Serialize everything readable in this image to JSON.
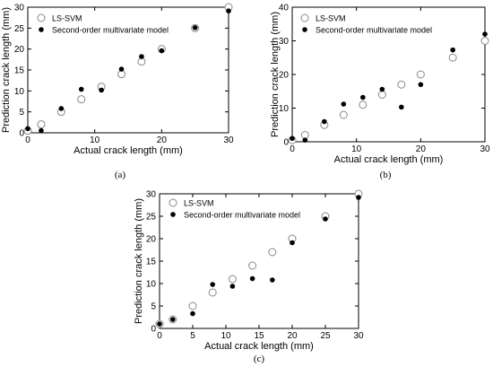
{
  "chart_data": [
    {
      "type": "scatter",
      "caption": "(a)",
      "xlabel": "Actual crack length (mm)",
      "ylabel": "Prediction crack length (mm)",
      "xlim": [
        0,
        30
      ],
      "ylim": [
        0,
        30
      ],
      "xticks": [
        0,
        10,
        20,
        30
      ],
      "yticks": [
        0,
        5,
        10,
        15,
        20,
        25,
        30
      ],
      "legend_position": "top-left",
      "series": [
        {
          "name": "LS-SVM",
          "marker": "open-circle",
          "color": "#888888",
          "x": [
            0,
            2,
            5,
            8,
            11,
            14,
            17,
            20,
            25,
            30
          ],
          "y": [
            0.5,
            2,
            5,
            8,
            11,
            14,
            17,
            20,
            25,
            30
          ]
        },
        {
          "name": "Second-order multivariate model",
          "marker": "filled-circle",
          "color": "#000000",
          "x": [
            0,
            2,
            5,
            8,
            11,
            14,
            17,
            20,
            25,
            30
          ],
          "y": [
            1,
            0.5,
            5.8,
            10.4,
            10.2,
            15.2,
            18.2,
            19.6,
            25.1,
            29.1
          ]
        }
      ]
    },
    {
      "type": "scatter",
      "caption": "(b)",
      "xlabel": "Actual crack length (mm)",
      "ylabel": "Prediction crack length (mm)",
      "xlim": [
        0,
        30
      ],
      "ylim": [
        0,
        40
      ],
      "xticks": [
        0,
        10,
        20,
        30
      ],
      "yticks": [
        0,
        10,
        20,
        30,
        40
      ],
      "legend_position": "top-left",
      "series": [
        {
          "name": "LS-SVM",
          "marker": "open-circle",
          "color": "#888888",
          "x": [
            0,
            2,
            5,
            8,
            11,
            14,
            17,
            20,
            25,
            30
          ],
          "y": [
            0.5,
            2,
            5,
            8,
            11,
            14,
            17,
            20,
            25,
            30
          ]
        },
        {
          "name": "Second-order multivariate model",
          "marker": "filled-circle",
          "color": "#000000",
          "x": [
            0,
            2,
            5,
            8,
            11,
            14,
            17,
            20,
            25,
            30
          ],
          "y": [
            1,
            0.5,
            6,
            11.2,
            13.2,
            15.6,
            10.3,
            17,
            27.3,
            32
          ]
        }
      ]
    },
    {
      "type": "scatter",
      "caption": "(c)",
      "xlabel": "Actual crack length (mm)",
      "ylabel": "Prediction crack length (mm)",
      "xlim": [
        0,
        30
      ],
      "ylim": [
        0,
        30
      ],
      "xticks": [
        0,
        5,
        10,
        15,
        20,
        25,
        30
      ],
      "yticks": [
        0,
        5,
        10,
        15,
        20,
        25,
        30
      ],
      "legend_position": "top-left",
      "series": [
        {
          "name": "LS-SVM",
          "marker": "open-circle",
          "color": "#888888",
          "x": [
            0,
            2,
            5,
            8,
            11,
            14,
            17,
            20,
            25,
            30
          ],
          "y": [
            1,
            2,
            5,
            8,
            11,
            14,
            17,
            20,
            25,
            30
          ]
        },
        {
          "name": "Second-order multivariate model",
          "marker": "filled-circle",
          "color": "#000000",
          "x": [
            0,
            2,
            5,
            8,
            11,
            14,
            17,
            20,
            25,
            30
          ],
          "y": [
            1,
            2,
            3.3,
            9.8,
            9.4,
            11.1,
            10.8,
            19.1,
            24.4,
            29.2
          ]
        }
      ]
    }
  ]
}
